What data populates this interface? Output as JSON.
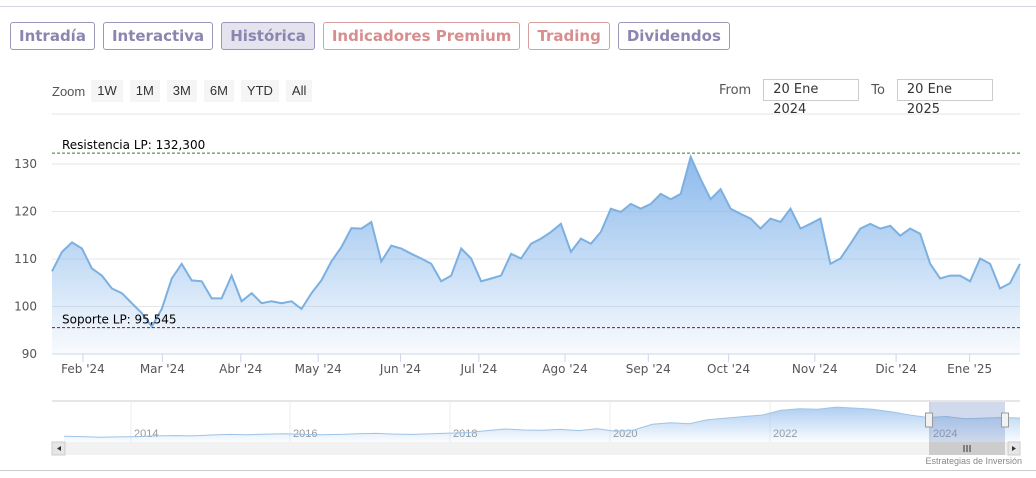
{
  "tabs": [
    {
      "label": "Intradía",
      "active": false,
      "red": false
    },
    {
      "label": "Interactiva",
      "active": false,
      "red": false
    },
    {
      "label": "Histórica",
      "active": true,
      "red": false
    },
    {
      "label": "Indicadores Premium",
      "active": false,
      "red": true
    },
    {
      "label": "Trading",
      "active": false,
      "red": true
    },
    {
      "label": "Dividendos",
      "active": false,
      "red": false
    }
  ],
  "zoom": {
    "label": "Zoom",
    "buttons": [
      "1W",
      "1M",
      "3M",
      "6M",
      "YTD",
      "All"
    ]
  },
  "range": {
    "from_label": "From",
    "from_value": "20 Ene 2024",
    "to_label": "To",
    "to_value": "20 Ene 2025"
  },
  "credits": "Estrategias de Inversión",
  "colors": {
    "line": "#7cb0e0",
    "fill_top": "#7fb2ea",
    "resistance": "#2e7d32",
    "support": "#8b1a1a"
  },
  "chart_data": {
    "type": "area",
    "title": "",
    "xlabel": "",
    "ylabel": "",
    "ylim": [
      88.5,
      134
    ],
    "yticks": [
      90,
      100,
      110,
      120,
      130
    ],
    "grid": true,
    "x_range": [
      "20 Ene 2024",
      "20 Ene 2025"
    ],
    "xtick_labels": [
      "Feb '24",
      "Mar '24",
      "Abr '24",
      "May '24",
      "Jun '24",
      "Jul '24",
      "Ago '24",
      "Sep '24",
      "Oct '24",
      "Nov '24",
      "Dic '24",
      "Ene '25"
    ],
    "xtick_positions_fraction_of_range": [
      0.032,
      0.114,
      0.195,
      0.275,
      0.36,
      0.441,
      0.53,
      0.616,
      0.699,
      0.788,
      0.872,
      0.948
    ],
    "values": [
      107.4,
      111.5,
      113.5,
      112.2,
      108,
      106.5,
      103.8,
      102.8,
      100.7,
      98.6,
      95.8,
      99.5,
      105.9,
      109,
      105.5,
      105.3,
      101.7,
      101.7,
      106.5,
      101.1,
      102.8,
      100.7,
      101.1,
      100.7,
      101.1,
      99.5,
      102.8,
      105.5,
      109.5,
      112.5,
      116.5,
      116.4,
      117.8,
      109.5,
      112.8,
      112.2,
      111.1,
      110.1,
      109,
      105.3,
      106.5,
      112.2,
      110.1,
      105.3,
      105.9,
      106.5,
      111.1,
      110.1,
      113.2,
      114.3,
      115.7,
      117.4,
      111.5,
      114.3,
      113.2,
      115.7,
      120.6,
      119.9,
      121.6,
      120.6,
      121.6,
      123.7,
      122.6,
      123.7,
      131.5,
      126.8,
      122.6,
      124.7,
      120.6,
      119.5,
      118.5,
      116.4,
      118.5,
      117.8,
      120.6,
      116.4,
      117.4,
      118.5,
      109,
      110.1,
      113.2,
      116.4,
      117.4,
      116.4,
      117,
      114.9,
      116.4,
      115.3,
      109,
      105.9,
      106.5,
      106.5,
      105.3,
      110.1,
      109,
      103.8,
      104.9,
      109
    ],
    "annotations": [
      {
        "label": "Resistencia LP: 132,300",
        "value": 132.3
      },
      {
        "label": "Soporte LP: 95,545",
        "value": 95.545
      }
    ],
    "navigator": {
      "year_labels": [
        "2014",
        "2016",
        "2018",
        "2020",
        "2022",
        "2024"
      ],
      "ylim": [
        20,
        135
      ],
      "values": [
        32,
        31,
        29,
        30,
        31,
        33,
        34,
        33,
        36,
        38,
        37,
        39,
        40,
        38,
        37,
        38,
        40,
        41,
        39,
        38,
        40,
        42,
        44,
        50,
        55,
        52,
        51,
        54,
        50,
        56,
        48,
        52,
        70,
        75,
        72,
        85,
        90,
        95,
        100,
        115,
        120,
        118,
        125,
        122,
        118,
        110,
        100,
        92,
        95,
        88,
        90,
        92,
        90
      ],
      "selected_fraction": [
        0.906,
        1.0
      ]
    }
  }
}
